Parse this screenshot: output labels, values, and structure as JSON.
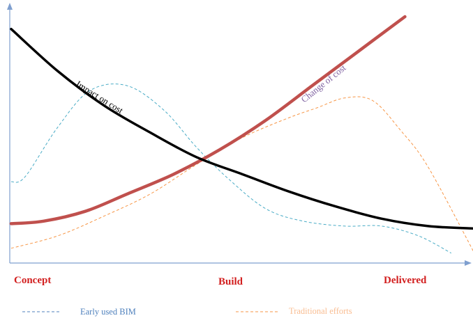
{
  "chart_data": {
    "type": "line",
    "categories": [
      "Concept",
      "Build",
      "Delivered"
    ],
    "x_range": [
      0,
      100
    ],
    "y_range": [
      0,
      100
    ],
    "grid": false,
    "legend_placement": "bottom",
    "series": [
      {
        "key": "impact",
        "name": "Impact on cost",
        "color": "#000000",
        "style": "solid-thick",
        "points": [
          [
            0,
            95
          ],
          [
            10,
            78
          ],
          [
            20,
            64
          ],
          [
            30,
            53
          ],
          [
            40,
            43
          ],
          [
            50,
            36
          ],
          [
            60,
            29
          ],
          [
            70,
            23
          ],
          [
            80,
            18
          ],
          [
            90,
            15
          ],
          [
            100,
            14
          ]
        ]
      },
      {
        "key": "change",
        "name": "Change of cost",
        "color": "#c0504d",
        "style": "solid-thick",
        "points": [
          [
            0,
            16
          ],
          [
            7,
            17
          ],
          [
            16,
            21
          ],
          [
            25,
            28
          ],
          [
            35,
            36
          ],
          [
            45,
            46
          ],
          [
            55,
            58
          ],
          [
            65,
            72
          ],
          [
            75,
            86
          ],
          [
            85,
            100
          ]
        ]
      },
      {
        "key": "bim",
        "name": "Early used BIM",
        "color": "#4aacc6",
        "style": "dashed",
        "points": [
          [
            0,
            33
          ],
          [
            3,
            35
          ],
          [
            10,
            55
          ],
          [
            17,
            70
          ],
          [
            25,
            72
          ],
          [
            33,
            62
          ],
          [
            40,
            47
          ],
          [
            47,
            34
          ],
          [
            55,
            22
          ],
          [
            63,
            17
          ],
          [
            72,
            15
          ],
          [
            80,
            15
          ],
          [
            88,
            11
          ],
          [
            95,
            4
          ]
        ]
      },
      {
        "key": "trad",
        "name": "Traditional efforts",
        "color": "#f79646",
        "style": "dashed",
        "points": [
          [
            0,
            6
          ],
          [
            10,
            11
          ],
          [
            20,
            19
          ],
          [
            30,
            28
          ],
          [
            40,
            40
          ],
          [
            50,
            51
          ],
          [
            60,
            59
          ],
          [
            66,
            63
          ],
          [
            72,
            67
          ],
          [
            78,
            66
          ],
          [
            84,
            54
          ],
          [
            90,
            39
          ],
          [
            100,
            4
          ]
        ]
      }
    ],
    "curve_labels": {
      "impact": "Impact on cost",
      "change": "Change of cost"
    },
    "legend": [
      {
        "name": "Early used BIM",
        "color": "#4f81bd"
      },
      {
        "name": "Traditional efforts",
        "color": "#f79646"
      }
    ],
    "category_color": "#d21f1f",
    "axis_color": "#7f9fcf"
  }
}
